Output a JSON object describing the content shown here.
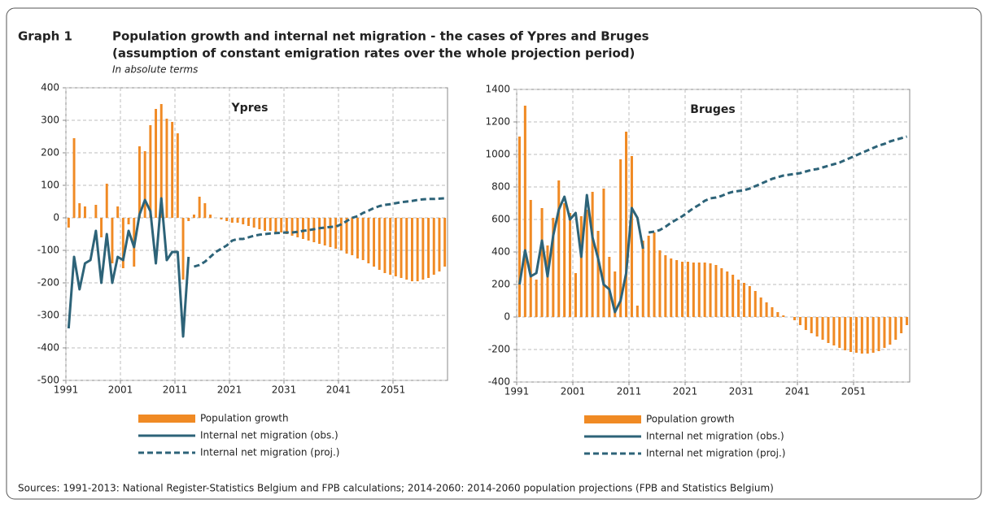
{
  "header": {
    "label": "Graph 1",
    "title": [
      "Population growth and internal net migration - the cases of Ypres and Bruges",
      "(assumption of constant emigration rates over the whole projection period)"
    ],
    "subtitle": "In absolute terms"
  },
  "chart_data": [
    {
      "type": "bar",
      "title": "Ypres",
      "x": [
        1991,
        1992,
        1993,
        1994,
        1995,
        1996,
        1997,
        1998,
        1999,
        2000,
        2001,
        2002,
        2003,
        2004,
        2005,
        2006,
        2007,
        2008,
        2009,
        2010,
        2011,
        2012,
        2013,
        2014,
        2015,
        2016,
        2017,
        2018,
        2019,
        2020,
        2021,
        2022,
        2023,
        2024,
        2025,
        2026,
        2027,
        2028,
        2029,
        2030,
        2031,
        2032,
        2033,
        2034,
        2035,
        2036,
        2037,
        2038,
        2039,
        2040,
        2041,
        2042,
        2043,
        2044,
        2045,
        2046,
        2047,
        2048,
        2049,
        2050,
        2051,
        2052,
        2053,
        2054,
        2055,
        2056,
        2057,
        2058,
        2059,
        2060
      ],
      "xlim": [
        1991,
        2061
      ],
      "xticks": [
        1991,
        2001,
        2011,
        2021,
        2031,
        2041,
        2051
      ],
      "ylim": [
        -500,
        400
      ],
      "yticks": [
        -500,
        -400,
        -300,
        -200,
        -100,
        0,
        100,
        200,
        300,
        400
      ],
      "grid": true,
      "series": [
        {
          "name": "Population growth",
          "kind": "bar",
          "color": "#f08a24",
          "values": [
            -30,
            245,
            45,
            35,
            0,
            40,
            -60,
            105,
            -140,
            35,
            -155,
            -20,
            -150,
            220,
            205,
            285,
            335,
            350,
            305,
            295,
            260,
            -190,
            -10,
            10,
            65,
            45,
            10,
            0,
            -5,
            -10,
            -15,
            -15,
            -20,
            -25,
            -30,
            -35,
            -40,
            -40,
            -45,
            -45,
            -50,
            -55,
            -60,
            -65,
            -70,
            -75,
            -80,
            -85,
            -90,
            -95,
            -100,
            -110,
            -115,
            -125,
            -130,
            -140,
            -150,
            -160,
            -170,
            -175,
            -180,
            -185,
            -190,
            -195,
            -195,
            -190,
            -185,
            -175,
            -165,
            -150
          ]
        },
        {
          "name": "Internal net migration (obs.)",
          "kind": "line",
          "style": "solid",
          "color": "#2d6378",
          "values": [
            -340,
            -120,
            -220,
            -140,
            -130,
            -40,
            -200,
            -50,
            -200,
            -120,
            -130,
            -40,
            -90,
            10,
            55,
            20,
            -140,
            60,
            -130,
            -105,
            -105,
            -365,
            -120,
            null,
            null,
            null,
            null,
            null,
            null,
            null,
            null,
            null,
            null,
            null,
            null,
            null,
            null,
            null,
            null,
            null,
            null,
            null,
            null,
            null,
            null,
            null,
            null,
            null,
            null,
            null,
            null,
            null,
            null,
            null,
            null,
            null,
            null,
            null,
            null,
            null,
            null,
            null,
            null,
            null,
            null,
            null,
            null,
            null,
            null,
            null
          ]
        },
        {
          "name": "Internal net migration (proj.)",
          "kind": "line",
          "style": "dashed",
          "color": "#2d6378",
          "values": [
            null,
            null,
            null,
            null,
            null,
            null,
            null,
            null,
            null,
            null,
            null,
            null,
            null,
            null,
            null,
            null,
            null,
            null,
            null,
            null,
            null,
            null,
            null,
            -150,
            -145,
            -135,
            -120,
            -105,
            -95,
            -85,
            -70,
            -65,
            -65,
            -60,
            -55,
            -52,
            -50,
            -48,
            -47,
            -46,
            -45,
            -45,
            -43,
            -40,
            -38,
            -35,
            -32,
            -30,
            -28,
            -27,
            -20,
            -10,
            0,
            5,
            15,
            22,
            30,
            36,
            40,
            42,
            45,
            48,
            50,
            52,
            55,
            57,
            58,
            58,
            59,
            60
          ]
        }
      ]
    },
    {
      "type": "bar",
      "title": "Bruges",
      "x": [
        1991,
        1992,
        1993,
        1994,
        1995,
        1996,
        1997,
        1998,
        1999,
        2000,
        2001,
        2002,
        2003,
        2004,
        2005,
        2006,
        2007,
        2008,
        2009,
        2010,
        2011,
        2012,
        2013,
        2014,
        2015,
        2016,
        2017,
        2018,
        2019,
        2020,
        2021,
        2022,
        2023,
        2024,
        2025,
        2026,
        2027,
        2028,
        2029,
        2030,
        2031,
        2032,
        2033,
        2034,
        2035,
        2036,
        2037,
        2038,
        2039,
        2040,
        2041,
        2042,
        2043,
        2044,
        2045,
        2046,
        2047,
        2048,
        2049,
        2050,
        2051,
        2052,
        2053,
        2054,
        2055,
        2056,
        2057,
        2058,
        2059,
        2060
      ],
      "xlim": [
        1991,
        2061
      ],
      "xticks": [
        1991,
        2001,
        2011,
        2021,
        2031,
        2041,
        2051
      ],
      "ylim": [
        -400,
        1400
      ],
      "yticks": [
        -400,
        -200,
        0,
        200,
        400,
        600,
        800,
        1000,
        1200,
        1400
      ],
      "grid": true,
      "series": [
        {
          "name": "Population growth",
          "kind": "bar",
          "color": "#f08a24",
          "values": [
            1110,
            1300,
            720,
            230,
            670,
            440,
            610,
            840,
            700,
            640,
            270,
            620,
            660,
            770,
            530,
            790,
            370,
            280,
            970,
            1140,
            990,
            70,
            470,
            500,
            520,
            410,
            380,
            360,
            350,
            340,
            340,
            335,
            335,
            335,
            330,
            320,
            300,
            280,
            260,
            230,
            210,
            190,
            160,
            120,
            90,
            60,
            30,
            10,
            0,
            -20,
            -50,
            -80,
            -100,
            -120,
            -140,
            -160,
            -175,
            -190,
            -205,
            -215,
            -220,
            -225,
            -225,
            -220,
            -210,
            -190,
            -170,
            -140,
            -100,
            -50
          ]
        },
        {
          "name": "Internal net migration (obs.)",
          "kind": "line",
          "style": "solid",
          "color": "#2d6378",
          "values": [
            200,
            410,
            250,
            270,
            470,
            250,
            500,
            660,
            740,
            600,
            640,
            370,
            750,
            490,
            360,
            200,
            170,
            30,
            100,
            270,
            670,
            610,
            420,
            null,
            null,
            null,
            null,
            null,
            null,
            null,
            null,
            null,
            null,
            null,
            null,
            null,
            null,
            null,
            null,
            null,
            null,
            null,
            null,
            null,
            null,
            null,
            null,
            null,
            null,
            null,
            null,
            null,
            null,
            null,
            null,
            null,
            null,
            null,
            null,
            null,
            null,
            null,
            null,
            null,
            null,
            null,
            null,
            null,
            null,
            null
          ]
        },
        {
          "name": "Internal net migration (proj.)",
          "kind": "line",
          "style": "dashed",
          "color": "#2d6378",
          "values": [
            null,
            null,
            null,
            null,
            null,
            null,
            null,
            null,
            null,
            null,
            null,
            null,
            null,
            null,
            null,
            null,
            null,
            null,
            null,
            null,
            null,
            null,
            null,
            520,
            525,
            535,
            555,
            580,
            600,
            620,
            645,
            670,
            690,
            715,
            730,
            735,
            745,
            760,
            770,
            775,
            780,
            790,
            805,
            820,
            835,
            850,
            860,
            870,
            875,
            880,
            885,
            895,
            905,
            910,
            920,
            930,
            940,
            950,
            965,
            980,
            995,
            1010,
            1025,
            1040,
            1055,
            1065,
            1080,
            1090,
            1100,
            1110
          ]
        }
      ]
    }
  ],
  "sources": "Sources: 1991-2013: National Register-Statistics Belgium and FPB calculations; 2014-2060: 2014-2060 population projections (FPB and Statistics Belgium)"
}
